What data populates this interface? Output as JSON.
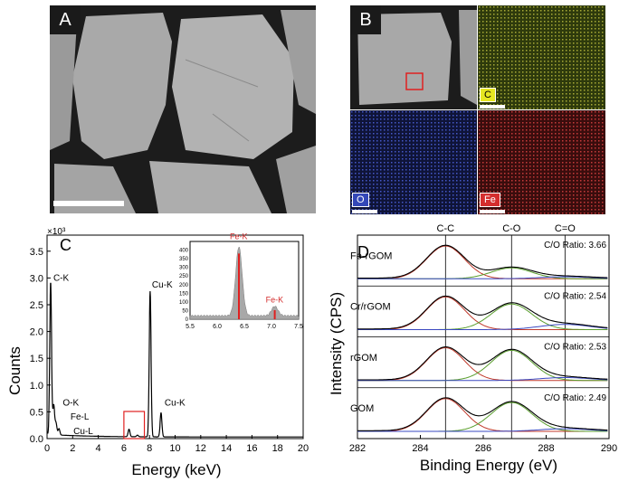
{
  "figure": {
    "panel_a": {
      "label": "A"
    },
    "panel_b": {
      "label": "B",
      "maps": [
        {
          "element": "C",
          "color": "#c8c832"
        },
        {
          "element": "O",
          "color": "#3a4cc4"
        },
        {
          "element": "Fe",
          "color": "#d43a3a"
        }
      ]
    }
  },
  "chart_data": [
    {
      "panel": "C",
      "type": "line",
      "xlabel": "Energy (keV)",
      "ylabel": "Counts",
      "multiplier": "×10³",
      "xlim": [
        0,
        20
      ],
      "ylim": [
        0,
        3.8
      ],
      "xticks": [
        0,
        2,
        4,
        6,
        8,
        10,
        12,
        14,
        16,
        18,
        20
      ],
      "yticks": [
        0.0,
        0.5,
        1.0,
        1.5,
        2.0,
        2.5,
        3.0,
        3.5
      ],
      "peaks": [
        {
          "label": "C-K",
          "energy": 0.28,
          "counts": 2.85
        },
        {
          "label": "O-K",
          "energy": 0.52,
          "counts": 0.55
        },
        {
          "label": "Fe-L",
          "energy": 0.7,
          "counts": 0.22
        },
        {
          "label": "Cu-L",
          "energy": 0.93,
          "counts": 0.12
        },
        {
          "label": "Cu-K",
          "energy": 8.05,
          "counts": 2.72
        },
        {
          "label": "Cu-K",
          "energy": 8.9,
          "counts": 0.45
        }
      ],
      "inset": {
        "xlim": [
          5.5,
          7.5
        ],
        "ylim": [
          0,
          450
        ],
        "xticks": [
          5.5,
          6.0,
          6.5,
          7.0,
          7.5
        ],
        "yticks": [
          0,
          50,
          100,
          150,
          200,
          250,
          300,
          350,
          400
        ],
        "peaks": [
          {
            "label": "Fe-K",
            "energy": 6.4,
            "counts": 400
          },
          {
            "label": "Fe-K",
            "energy": 7.06,
            "counts": 55
          }
        ]
      }
    },
    {
      "panel": "D",
      "type": "line",
      "xlabel": "Binding Energy (eV)",
      "ylabel": "Intensity (CPS)",
      "xlim": [
        282,
        290
      ],
      "xticks": [
        282,
        284,
        286,
        288,
        290
      ],
      "reference_lines": [
        {
          "label": "C-C",
          "energy": 284.8
        },
        {
          "label": "C-O",
          "energy": 286.9
        },
        {
          "label": "C=O",
          "energy": 288.6
        }
      ],
      "samples": [
        {
          "name": "Fe-rGOM",
          "ratio_text": "C/O Ratio: 3.66",
          "cc": 1.0,
          "co": 0.33,
          "c_eq_o": 0.06
        },
        {
          "name": "Cr/rGOM",
          "ratio_text": "C/O Ratio: 2.54",
          "cc": 1.0,
          "co": 0.78,
          "c_eq_o": 0.16
        },
        {
          "name": "rGOM",
          "ratio_text": "C/O Ratio: 2.53",
          "cc": 1.0,
          "co": 0.92,
          "c_eq_o": 0.09
        },
        {
          "name": "GOM",
          "ratio_text": "C/O Ratio: 2.49",
          "cc": 1.0,
          "co": 0.88,
          "c_eq_o": 0.08
        }
      ]
    }
  ]
}
